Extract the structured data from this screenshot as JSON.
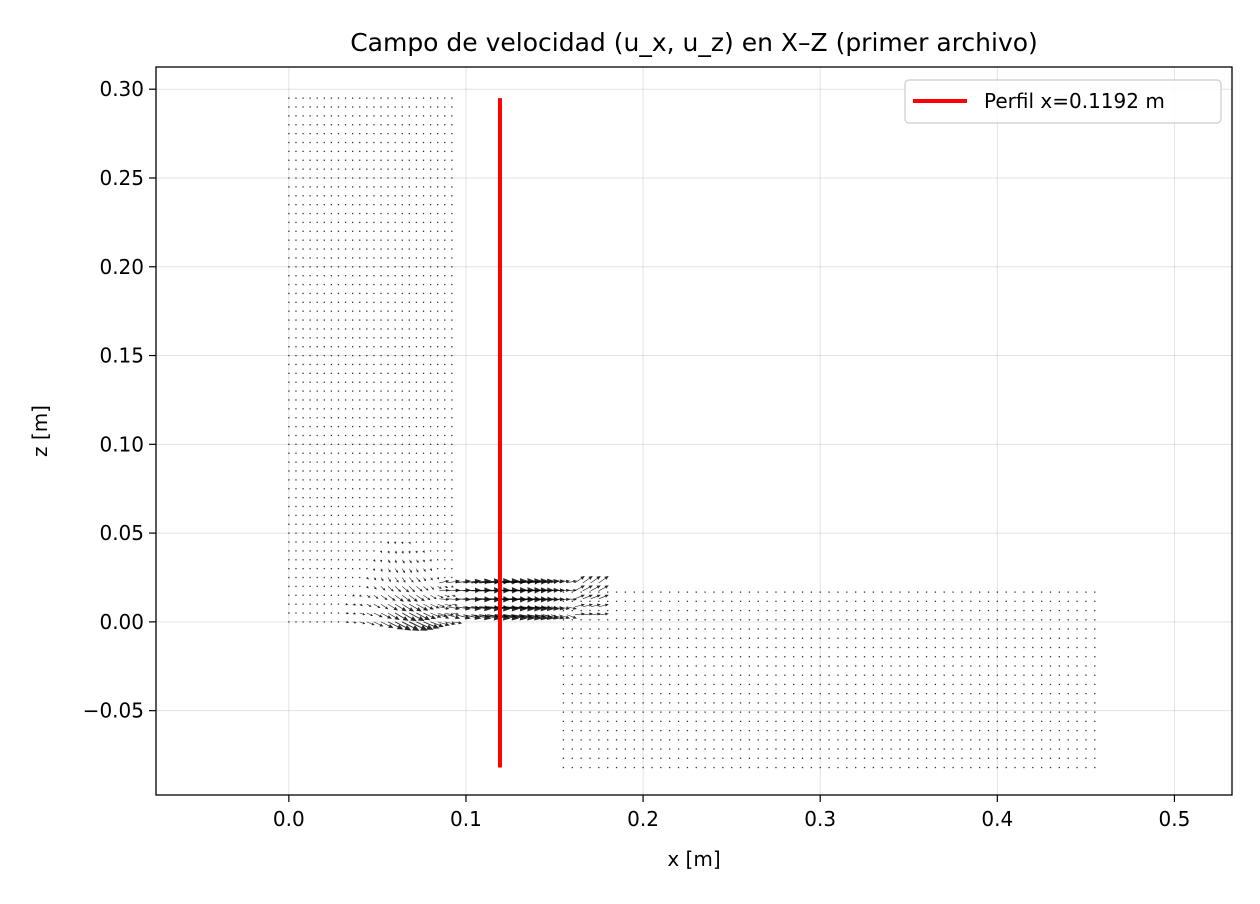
{
  "chart_data": {
    "type": "quiver",
    "title": "Campo de velocidad (u_x, u_z) en X–Z (primer archivo)",
    "xlabel": "x [m]",
    "ylabel": "z [m]",
    "xlim": [
      -0.075,
      0.5325
    ],
    "ylim": [
      -0.0975,
      0.3125
    ],
    "x_ticks": [
      0.0,
      0.1,
      0.2,
      0.3,
      0.4,
      0.5
    ],
    "x_tick_labels": [
      "0.0",
      "0.1",
      "0.2",
      "0.3",
      "0.4",
      "0.5"
    ],
    "y_ticks": [
      -0.05,
      0.0,
      0.05,
      0.1,
      0.15,
      0.2,
      0.25,
      0.3
    ],
    "y_tick_labels": [
      "−0.05",
      "0.00",
      "0.05",
      "0.10",
      "0.15",
      "0.20",
      "0.25",
      "0.30"
    ],
    "grid": true,
    "legend_position": "top-right",
    "series": [
      {
        "name": "Perfil x=0.1192 m",
        "type": "line",
        "color": "#ff0000",
        "x": [
          0.1192,
          0.1192
        ],
        "y": [
          -0.082,
          0.295
        ]
      }
    ],
    "field": {
      "color": "#000000",
      "vertical_channel": {
        "x_range": [
          0.0,
          0.092
        ],
        "z_range": [
          0.0,
          0.295
        ]
      },
      "horizontal_channel": {
        "x_range": [
          0.155,
          0.458
        ],
        "z_range": [
          -0.082,
          0.021
        ]
      },
      "jet": {
        "x_range": [
          0.085,
          0.175
        ],
        "z_range": [
          0.004,
          0.022
        ]
      }
    }
  }
}
